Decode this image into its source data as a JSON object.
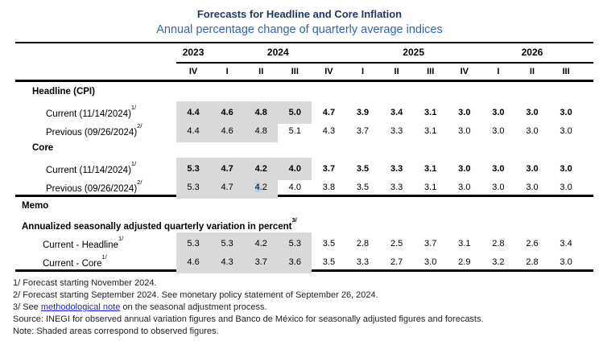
{
  "title": "Forecasts for Headline and Core Inflation",
  "subtitle": "Annual percentage change of quarterly average indices",
  "header": {
    "years": [
      {
        "label": "2023",
        "quarter_span": 1
      },
      {
        "label": "2024",
        "quarter_span": 4
      },
      {
        "label": "2025",
        "quarter_span": 4
      },
      {
        "label": "2026",
        "quarter_span": 3
      }
    ],
    "quarters": [
      "IV",
      "I",
      "II",
      "III",
      "IV",
      "I",
      "II",
      "III",
      "IV",
      "I",
      "II",
      "III"
    ]
  },
  "body": {
    "headline_section": "Headline (CPI)",
    "core_section": "Core",
    "rows": {
      "headline_current": {
        "label": "Current (11/14/2024)",
        "sup": "1/",
        "bold": true,
        "shaded_columns": 4,
        "values": [
          "4.4",
          "4.6",
          "4.8",
          "5.0",
          "4.7",
          "3.9",
          "3.4",
          "3.1",
          "3.0",
          "3.0",
          "3.0",
          "3.0"
        ]
      },
      "headline_previous": {
        "label": "Previous (09/26/2024)",
        "sup": "2/",
        "bold": false,
        "shaded_columns": 3,
        "values": [
          "4.4",
          "4.6",
          "4.8",
          "5.1",
          "4.3",
          "3.7",
          "3.3",
          "3.1",
          "3.0",
          "3.0",
          "3.0",
          "3.0"
        ]
      },
      "core_current": {
        "label": "Current (11/14/2024)",
        "sup": "1/",
        "bold": true,
        "shaded_columns": 4,
        "values": [
          "5.3",
          "4.7",
          "4.2",
          "4.0",
          "3.7",
          "3.5",
          "3.3",
          "3.1",
          "3.0",
          "3.0",
          "3.0",
          "3.0"
        ]
      },
      "core_previous": {
        "label": "Previous (09/26/2024)",
        "sup": "2/",
        "bold": false,
        "shaded_columns": 3,
        "selection_highlight_column": 2,
        "values": [
          "5.3",
          "4.7",
          "4.2",
          "4.0",
          "3.8",
          "3.5",
          "3.3",
          "3.1",
          "3.0",
          "3.0",
          "3.0",
          "3.0"
        ]
      }
    }
  },
  "memo": {
    "label": "Memo",
    "subtitle": "Annualized seasonally adjusted quarterly variation in percent",
    "subtitle_sup": "3/",
    "rows": {
      "memo_headline": {
        "label": "Current - Headline",
        "sup": "1/",
        "shaded_columns": 4,
        "values": [
          "5.3",
          "5.3",
          "4.2",
          "5.3",
          "3.5",
          "2.8",
          "2.5",
          "3.7",
          "3.1",
          "2.8",
          "2.6",
          "3.4"
        ]
      },
      "memo_core": {
        "label": "Current - Core",
        "sup": "1/",
        "shaded_columns": 4,
        "values": [
          "4.6",
          "4.3",
          "3.7",
          "3.6",
          "3.5",
          "3.3",
          "2.7",
          "3.0",
          "2.9",
          "3.2",
          "2.8",
          "3.0"
        ]
      }
    }
  },
  "footnotes": {
    "fn1": "1/ Forecast starting November 2024.",
    "fn2": "2/ Forecast starting September 2024. See monetary policy statement of September 26, 2024.",
    "fn3_pre": "3/ See ",
    "fn3_link": "methodological note",
    "fn3_post": " on the seasonal adjustment process.",
    "source": "Source: INEGI for observed annual variation figures and Banco de México for seasonally adjusted figures and forecasts.",
    "note": "Note: Shaded areas correspond to observed figures."
  },
  "colors": {
    "title": "#1F3864",
    "subtitle": "#3566A5",
    "shaded_cell": "#D9D9D9",
    "selection_highlight": "#B1CCE9",
    "link": "#2222CC",
    "rule": "#000000"
  }
}
